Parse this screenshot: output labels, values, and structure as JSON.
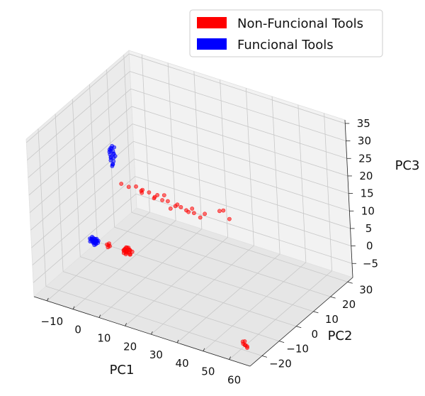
{
  "chart_data": {
    "type": "scatter",
    "title": "",
    "xlabel": "PC1",
    "ylabel": "PC2",
    "zlabel": "PC3",
    "xlim": [
      -15,
      68
    ],
    "ylim": [
      -27,
      33
    ],
    "zlim": [
      -9,
      36
    ],
    "xticks": [
      -10,
      0,
      10,
      20,
      30,
      40,
      50,
      60
    ],
    "yticks": [
      -20,
      -10,
      0,
      10,
      20,
      30
    ],
    "zticks": [
      -5,
      0,
      5,
      10,
      15,
      20,
      25,
      30,
      35
    ],
    "legend_position": "top-right",
    "series": [
      {
        "name": "Non-Funcional Tools",
        "color": "#ff0000",
        "points": [
          [
            -5.5,
            2.5,
            -4.5
          ],
          [
            -5.8,
            2.1,
            -4.2
          ],
          [
            -5.2,
            2.8,
            -4.8
          ],
          [
            -5.6,
            2.3,
            -5.0
          ],
          [
            -5.3,
            2.6,
            -4.0
          ],
          [
            1.0,
            2.2,
            -3.9
          ],
          [
            2.0,
            2.0,
            -4.3
          ],
          [
            1.5,
            2.8,
            -3.6
          ],
          [
            2.6,
            2.4,
            -4.6
          ],
          [
            0.8,
            1.8,
            -4.1
          ],
          [
            3.1,
            2.2,
            -3.8
          ],
          [
            1.8,
            1.5,
            -4.9
          ],
          [
            2.3,
            3.1,
            -4.2
          ],
          [
            1.2,
            2.6,
            -5.1
          ],
          [
            2.9,
            1.7,
            -3.4
          ],
          [
            0.5,
            2.4,
            -4.6
          ],
          [
            3.4,
            2.9,
            -4.4
          ],
          [
            1.7,
            2.0,
            -3.2
          ],
          [
            2.2,
            1.3,
            -4.0
          ],
          [
            1.0,
            3.0,
            -4.8
          ],
          [
            2.8,
            2.6,
            -5.2
          ],
          [
            1.4,
            1.7,
            -3.7
          ],
          [
            3.0,
            2.0,
            -4.9
          ],
          [
            2.0,
            2.9,
            -3.6
          ],
          [
            0.7,
            2.0,
            -5.0
          ],
          [
            -3.5,
            8.5,
            11.0
          ],
          [
            -1.0,
            9.0,
            10.5
          ],
          [
            1.5,
            9.5,
            11.0
          ],
          [
            4.0,
            9.0,
            10.0
          ],
          [
            6.5,
            9.5,
            10.5
          ],
          [
            9.0,
            9.0,
            10.0
          ],
          [
            11.5,
            9.5,
            9.5
          ],
          [
            14.0,
            9.0,
            10.0
          ],
          [
            16.5,
            9.5,
            9.0
          ],
          [
            19.0,
            9.0,
            9.5
          ],
          [
            21.5,
            9.5,
            8.5
          ],
          [
            24.0,
            9.0,
            9.0
          ],
          [
            26.0,
            9.5,
            8.0
          ],
          [
            5.0,
            8.0,
            11.5
          ],
          [
            12.0,
            10.0,
            10.8
          ],
          [
            18.0,
            8.5,
            10.2
          ],
          [
            22.5,
            10.2,
            9.4
          ],
          [
            8.0,
            10.0,
            9.0
          ],
          [
            15.5,
            8.2,
            8.6
          ],
          [
            3.0,
            10.2,
            9.8
          ],
          [
            27.5,
            10.0,
            9.2
          ],
          [
            10.5,
            8.3,
            11.2
          ],
          [
            20.0,
            10.5,
            8.2
          ],
          [
            34.0,
            9.0,
            12.0
          ],
          [
            35.5,
            9.0,
            12.5
          ],
          [
            37.0,
            10.0,
            10.0
          ],
          [
            62.5,
            -22.5,
            -5.2
          ],
          [
            63.0,
            -23.0,
            -5.5
          ],
          [
            63.5,
            -22.8,
            -5.8
          ],
          [
            64.0,
            -23.2,
            -5.6
          ],
          [
            64.5,
            -23.0,
            -5.9
          ],
          [
            63.2,
            -22.4,
            -5.0
          ],
          [
            64.8,
            -23.5,
            -6.0
          ]
        ]
      },
      {
        "name": "Funcional Tools",
        "color": "#0000ff",
        "points": [
          [
            -10.5,
            2.3,
            -3.8
          ],
          [
            -11.0,
            2.0,
            -4.3
          ],
          [
            -10.2,
            2.6,
            -4.6
          ],
          [
            -11.5,
            2.8,
            -4.0
          ],
          [
            -10.8,
            1.7,
            -4.8
          ],
          [
            -9.8,
            2.2,
            -3.6
          ],
          [
            -11.2,
            2.5,
            -5.0
          ],
          [
            -10.0,
            1.9,
            -4.1
          ],
          [
            -11.8,
            2.1,
            -4.5
          ],
          [
            -10.6,
            3.0,
            -4.9
          ],
          [
            -9.5,
            2.7,
            -4.3
          ],
          [
            -11.4,
            1.6,
            -3.7
          ],
          [
            -10.3,
            2.4,
            -5.3
          ],
          [
            -12.0,
            2.5,
            -4.2
          ],
          [
            -9.9,
            1.8,
            -4.7
          ],
          [
            -11.1,
            3.1,
            -4.4
          ],
          [
            -10.4,
            1.5,
            -3.9
          ],
          [
            -12.2,
            2.0,
            -4.8
          ],
          [
            -10.9,
            2.9,
            -5.2
          ],
          [
            -9.7,
            2.0,
            -4.0
          ],
          [
            -11.6,
            2.3,
            -3.5
          ],
          [
            -10.1,
            2.8,
            -4.5
          ],
          [
            -10.7,
            2.1,
            -5.5
          ],
          [
            -11.9,
            2.7,
            -4.6
          ],
          [
            -10.5,
            1.6,
            -4.2
          ],
          [
            -11.3,
            2.4,
            -4.9
          ],
          [
            -9.6,
            2.5,
            -4.8
          ],
          [
            -12.4,
            2.2,
            -4.1
          ],
          [
            -8.0,
            10.0,
            19.5
          ],
          [
            -7.5,
            10.5,
            18.5
          ],
          [
            -8.5,
            10.2,
            17.5
          ],
          [
            -7.0,
            10.0,
            18.0
          ],
          [
            -8.2,
            10.8,
            19.0
          ],
          [
            -7.8,
            9.6,
            17.2
          ],
          [
            -6.9,
            10.4,
            19.8
          ],
          [
            -8.6,
            10.1,
            18.2
          ],
          [
            -7.3,
            10.6,
            17.8
          ],
          [
            -7.9,
            9.8,
            18.8
          ],
          [
            -8.3,
            10.3,
            16.5
          ],
          [
            -7.1,
            10.1,
            16.9
          ],
          [
            -7.6,
            10.7,
            15.5
          ],
          [
            -8.1,
            9.9,
            16.0
          ],
          [
            -6.6,
            10.3,
            17.4
          ],
          [
            -8.8,
            10.5,
            18.6
          ],
          [
            -7.4,
            10.0,
            20.2
          ],
          [
            -7.2,
            9.7,
            15.2
          ],
          [
            -8.0,
            10.4,
            14.2
          ],
          [
            -7.7,
            10.2,
            14.8
          ]
        ]
      }
    ]
  }
}
